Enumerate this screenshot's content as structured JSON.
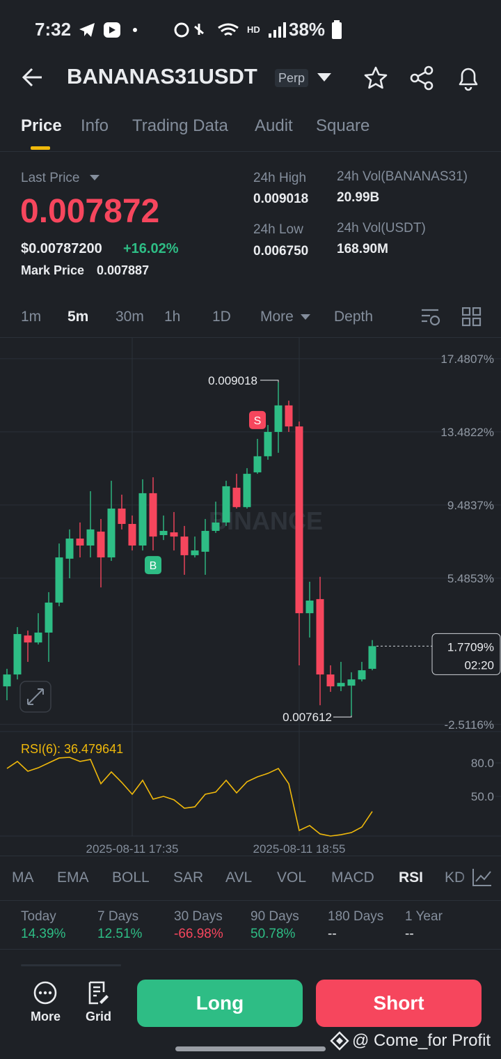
{
  "status_bar": {
    "time": "7:32",
    "network": "HD",
    "battery": "38%"
  },
  "header": {
    "symbol": "BANANAS31USDT",
    "badge": "Perp"
  },
  "tabs": [
    "Price",
    "Info",
    "Trading Data",
    "Audit",
    "Square"
  ],
  "price": {
    "last_price_label": "Last Price",
    "last_price": "0.007872",
    "usd_price": "$0.00787200",
    "change": "+16.02%",
    "mark_price_label": "Mark Price",
    "mark_price": "0.007887"
  },
  "stats": [
    {
      "label": "24h High",
      "value": "0.009018"
    },
    {
      "label": "24h Low",
      "value": "0.006750"
    },
    {
      "label": "24h Vol(BANANAS31)",
      "value": "20.99B"
    },
    {
      "label": "24h Vol(USDT)",
      "value": "168.90M"
    }
  ],
  "intervals": [
    "1m",
    "5m",
    "30m",
    "1h",
    "1D",
    "More",
    "Depth"
  ],
  "chart_data": [
    {
      "type": "candlestick",
      "watermark": "BINANCE",
      "categories": [
        null,
        null,
        null,
        null,
        null,
        null,
        null,
        null,
        null,
        null,
        null,
        null,
        "2025-08-11 17:35",
        null,
        null,
        null,
        null,
        null,
        null,
        null,
        null,
        null,
        null,
        null,
        null,
        null,
        null,
        null,
        "2025-08-11 18:55",
        null,
        null,
        null,
        null,
        null,
        null,
        null
      ],
      "open": [
        -0.43,
        0.22,
        2.35,
        1.97,
        2.51,
        4.15,
        6.55,
        7.65,
        7.27,
        8.03,
        6.62,
        9.29,
        8.45,
        7.27,
        10.13,
        7.84,
        7.99,
        7.76,
        6.74,
        6.93,
        8.07,
        8.53,
        10.43,
        9.37,
        11.27,
        12.15,
        13.48,
        14.93,
        13.78,
        3.57,
        4.34,
        0.22,
        -0.43,
        -0.39,
        -0.05,
        0.53
      ],
      "high": [
        0.53,
        2.81,
        2.62,
        3.57,
        4.72,
        7.38,
        8.15,
        8.53,
        10.24,
        8.72,
        10.81,
        10.05,
        8.91,
        10.89,
        11.0,
        8.91,
        9.1,
        8.34,
        7.76,
        8.72,
        9.67,
        10.81,
        11.19,
        11.5,
        13.1,
        13.86,
        16.19,
        15.19,
        14.05,
        5.29,
        5.56,
        0.72,
        0.91,
        0.34,
        0.91,
        2.1
      ],
      "low": [
        -1.19,
        -0.05,
        0.91,
        1.86,
        0.91,
        3.95,
        5.48,
        6.62,
        6.62,
        4.98,
        6.43,
        8.15,
        7.0,
        7.0,
        7.0,
        7.57,
        7.0,
        5.67,
        6.62,
        5.67,
        7.96,
        8.34,
        9.29,
        9.29,
        11.19,
        11.96,
        12.34,
        13.48,
        0.72,
        2.24,
        -1.46,
        -0.73,
        -0.69,
        -2.03,
        -0.16,
        0.45
      ],
      "close": [
        0.22,
        2.43,
        1.97,
        2.51,
        4.15,
        6.62,
        7.65,
        7.27,
        8.15,
        6.62,
        9.29,
        8.45,
        7.27,
        10.13,
        7.76,
        8.07,
        7.76,
        6.74,
        7.0,
        8.07,
        8.53,
        10.51,
        9.37,
        11.19,
        12.15,
        13.48,
        14.93,
        13.78,
        3.57,
        4.26,
        0.22,
        -0.43,
        -0.24,
        -0.05,
        0.45,
        1.7709
      ],
      "up_color": "#2ebd85",
      "down_color": "#f6465d",
      "ylim": [
        -2.9,
        18.62
      ],
      "yticks": [
        {
          "value": 17.4807,
          "label": "17.4807%"
        },
        {
          "value": 13.4822,
          "label": "13.4822%"
        },
        {
          "value": 9.4837,
          "label": "9.4837%"
        },
        {
          "value": 5.4853,
          "label": "5.4853%"
        },
        {
          "value": -2.5116,
          "label": "-2.5116%"
        }
      ],
      "high_label": "0.009018",
      "low_label": "0.007612",
      "buy_marker": "B",
      "sell_marker": "S",
      "current_label": {
        "value": 1.7709,
        "label": "1.7709%"
      },
      "countdown": "02:20",
      "grid": true
    },
    {
      "type": "line",
      "title": "RSI(6): 36.479641",
      "color": "#f0b90b",
      "values": [
        75.0,
        81.3,
        72.5,
        75.6,
        80.0,
        84.4,
        85.0,
        81.3,
        83.1,
        61.3,
        71.9,
        62.5,
        51.9,
        64.4,
        47.5,
        50.0,
        46.9,
        39.4,
        40.6,
        51.9,
        53.8,
        64.4,
        53.1,
        63.1,
        67.5,
        70.6,
        75.0,
        61.3,
        19.4,
        23.8,
        16.3,
        14.4,
        15.6,
        17.5,
        22.5,
        36.479641
      ],
      "ylim": [
        14.4,
        105
      ],
      "yticks": [
        {
          "value": 80,
          "label": "80.0"
        },
        {
          "value": 50,
          "label": "50.0"
        }
      ]
    }
  ],
  "indicators": [
    "MA",
    "EMA",
    "BOLL",
    "SAR",
    "AVL",
    "VOL",
    "MACD",
    "RSI",
    "KD"
  ],
  "performance": [
    {
      "period": "Today",
      "change": "14.39%"
    },
    {
      "period": "7 Days",
      "change": "12.51%"
    },
    {
      "period": "30 Days",
      "change": "-66.98%"
    },
    {
      "period": "90 Days",
      "change": "50.78%"
    },
    {
      "period": "180 Days",
      "change": "--"
    },
    {
      "period": "1 Year",
      "change": "--"
    }
  ],
  "footer": {
    "more": "More",
    "grid": "Grid",
    "long": "Long",
    "short": "Short",
    "watermark": "@ Come_for Profit"
  }
}
